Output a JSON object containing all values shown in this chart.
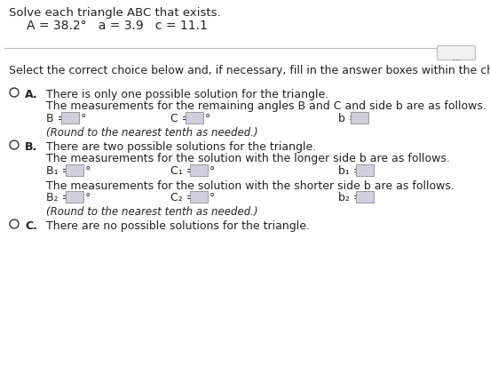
{
  "title_line1": "Solve each triangle ABC that exists.",
  "title_line2": "A = 38.2°   a = 3.9   c = 11.1",
  "select_text": "Select the correct choice below and, if necessary, fill in the answer boxes within the choice.",
  "option_A_label": "A.",
  "option_A_line1": "There is only one possible solution for the triangle.",
  "option_A_line2": "The measurements for the remaining angles B and C and side b are as follows.",
  "option_A_round": "(Round to the nearest tenth as needed.)",
  "option_B_label": "B.",
  "option_B_line1": "There are two possible solutions for the triangle.",
  "option_B_line2": "The measurements for the solution with the longer side b are as follows.",
  "option_B_line3": "The measurements for the solution with the shorter side b are as follows.",
  "option_B_round": "(Round to the nearest tenth as needed.)",
  "option_C_label": "C.",
  "option_C_line1": "There are no possible solutions for the triangle.",
  "bg_color": "#ffffff",
  "text_color": "#222222",
  "box_fill": "#d0d0dc",
  "box_edge": "#999999",
  "circle_edge": "#333333",
  "line_color": "#bbbbbb",
  "dots_bg": "#f0f0f0",
  "dots_edge": "#bbbbbb",
  "fs": 9.0,
  "fs_title": 9.5
}
